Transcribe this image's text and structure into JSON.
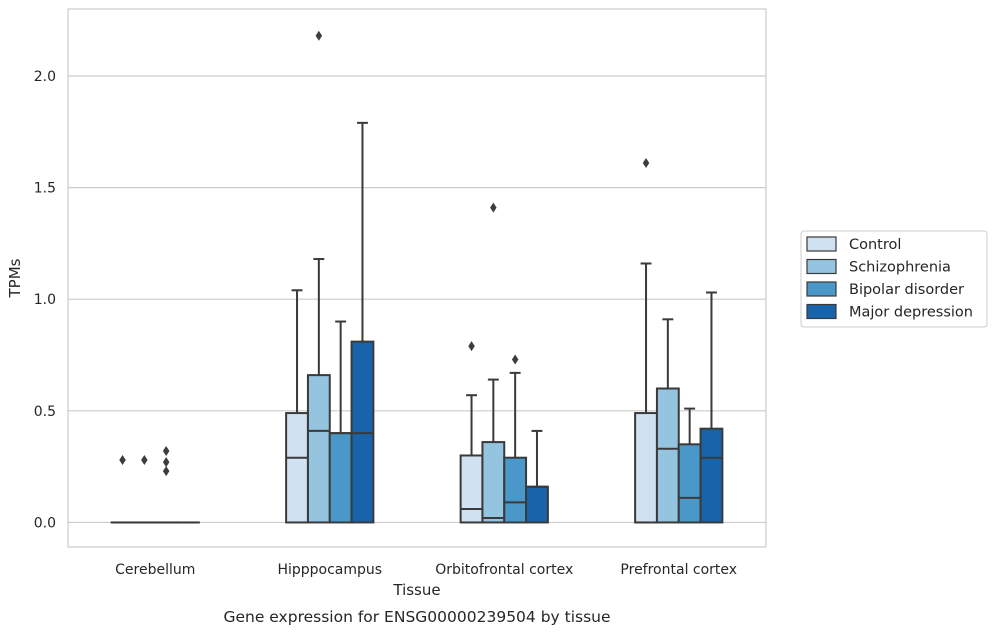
{
  "caption": "Gene expression for ENSG00000239504 by tissue",
  "chart_data": {
    "type": "boxplot",
    "xlabel": "Tissue",
    "ylabel": "TPMs",
    "ylim": [
      -0.11,
      2.3
    ],
    "yticks": [
      "0.0",
      "0.5",
      "1.0",
      "1.5",
      "2.0"
    ],
    "grid": "horizontal",
    "legend_position": "right",
    "categories": [
      "Cerebellum",
      "Hipppocampus",
      "Orbitofrontal cortex",
      "Prefrontal cortex"
    ],
    "series": [
      {
        "name": "Control",
        "color": "#d0e1f2",
        "boxes": [
          {
            "q1": 0,
            "median": 0,
            "q3": 0,
            "whisker_low": 0,
            "whisker_high": 0,
            "outliers": [
              0.28
            ]
          },
          {
            "q1": 0,
            "median": 0.29,
            "q3": 0.49,
            "whisker_low": 0,
            "whisker_high": 1.04,
            "outliers": []
          },
          {
            "q1": 0,
            "median": 0.06,
            "q3": 0.3,
            "whisker_low": 0,
            "whisker_high": 0.57,
            "outliers": [
              0.79
            ]
          },
          {
            "q1": 0,
            "median": 0,
            "q3": 0.49,
            "whisker_low": 0,
            "whisker_high": 1.16,
            "outliers": [
              1.61
            ]
          }
        ]
      },
      {
        "name": "Schizophrenia",
        "color": "#94c4df",
        "boxes": [
          {
            "q1": 0,
            "median": 0,
            "q3": 0,
            "whisker_low": 0,
            "whisker_high": 0,
            "outliers": [
              0.28
            ]
          },
          {
            "q1": 0,
            "median": 0.41,
            "q3": 0.66,
            "whisker_low": 0,
            "whisker_high": 1.18,
            "outliers": [
              2.18
            ]
          },
          {
            "q1": 0,
            "median": 0.02,
            "q3": 0.36,
            "whisker_low": 0,
            "whisker_high": 0.64,
            "outliers": [
              1.41
            ]
          },
          {
            "q1": 0,
            "median": 0.33,
            "q3": 0.6,
            "whisker_low": 0,
            "whisker_high": 0.91,
            "outliers": []
          }
        ]
      },
      {
        "name": "Bipolar disorder",
        "color": "#4a98c9",
        "boxes": [
          {
            "q1": 0,
            "median": 0,
            "q3": 0,
            "whisker_low": 0,
            "whisker_high": 0,
            "outliers": [
              0.32,
              0.27,
              0.23
            ]
          },
          {
            "q1": 0,
            "median": 0.4,
            "q3": 0.4,
            "whisker_low": 0,
            "whisker_high": 0.9,
            "outliers": []
          },
          {
            "q1": 0,
            "median": 0.09,
            "q3": 0.29,
            "whisker_low": 0,
            "whisker_high": 0.67,
            "outliers": [
              0.73
            ]
          },
          {
            "q1": 0,
            "median": 0.11,
            "q3": 0.35,
            "whisker_low": 0,
            "whisker_high": 0.51,
            "outliers": []
          }
        ]
      },
      {
        "name": "Major depression",
        "color": "#1764ab",
        "boxes": [
          {
            "q1": 0,
            "median": 0,
            "q3": 0,
            "whisker_low": 0,
            "whisker_high": 0,
            "outliers": []
          },
          {
            "q1": 0,
            "median": 0.4,
            "q3": 0.81,
            "whisker_low": 0,
            "whisker_high": 1.79,
            "outliers": []
          },
          {
            "q1": 0,
            "median": 0.16,
            "q3": 0.16,
            "whisker_low": 0,
            "whisker_high": 0.41,
            "outliers": []
          },
          {
            "q1": 0,
            "median": 0.29,
            "q3": 0.42,
            "whisker_low": 0,
            "whisker_high": 1.03,
            "outliers": []
          }
        ]
      }
    ]
  }
}
